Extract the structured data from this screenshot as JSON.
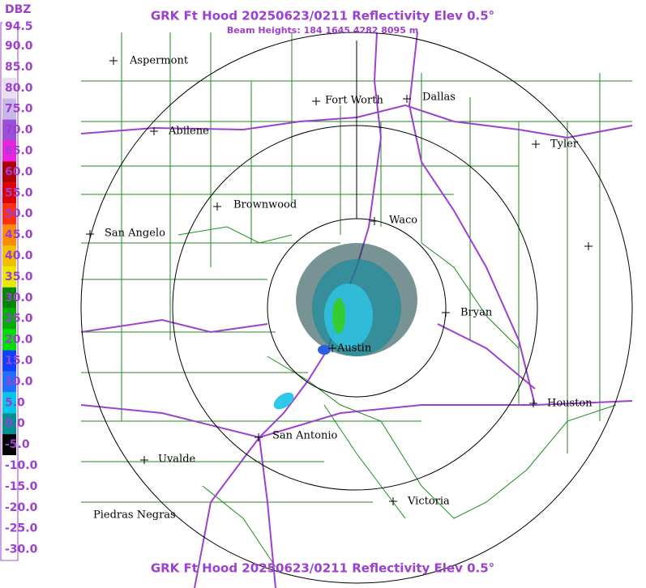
{
  "header": {
    "title": "GRK Ft Hood 20250623/0211 Reflectivity Elev 0.5°",
    "subtitle": "Beam Heights: 184 1645 4282 8095 m",
    "footer": "GRK Ft Hood 20250623/0211 Reflectivity Elev 0.5°"
  },
  "legend": {
    "unit": "DBZ",
    "labels": [
      "94.5",
      "90.0",
      "85.0",
      "80.0",
      "75.0",
      "70.0",
      "65.0",
      "60.0",
      "55.0",
      "50.0",
      "45.0",
      "40.0",
      "35.0",
      "30.0",
      "25.0",
      "20.0",
      "15.0",
      "10.0",
      "5.0",
      "0.0",
      "-5.0",
      "-10.0",
      "-15.0",
      "-20.0",
      "-25.0",
      "-30.0"
    ]
  },
  "cities": [
    {
      "label": "Aspermont"
    },
    {
      "label": "Fort Worth"
    },
    {
      "label": "Dallas"
    },
    {
      "label": "Abilene"
    },
    {
      "label": "Tyler"
    },
    {
      "label": "Brownwood"
    },
    {
      "label": "Waco"
    },
    {
      "label": "San Angelo"
    },
    {
      "label": "Bryan"
    },
    {
      "label": "Austin"
    },
    {
      "label": "Houston"
    },
    {
      "label": "San Antonio"
    },
    {
      "label": "Uvalde"
    },
    {
      "label": "Piedras Negras"
    },
    {
      "label": "Victoria"
    }
  ]
}
